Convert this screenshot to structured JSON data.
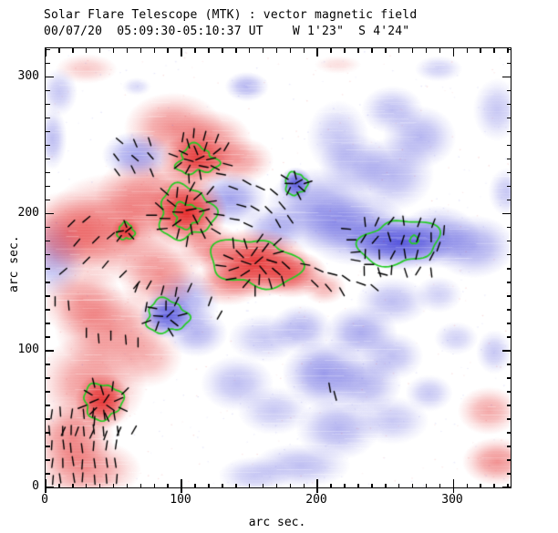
{
  "chart_data": {
    "type": "heatmap",
    "title": "Solar Flare Telescope (MTK) : vector magnetic field",
    "subtitle": "00/07/20  05:09:30-05:10:37 UT    W 1'23\"  S 4'24\"",
    "xlabel": "arc sec.",
    "ylabel": "arc sec.",
    "xlim": [
      0,
      342
    ],
    "ylim": [
      0,
      321
    ],
    "x_ticks": [
      0,
      100,
      200,
      300
    ],
    "y_ticks": [
      0,
      100,
      200,
      300
    ],
    "minor_tick_step": 10,
    "colors": {
      "positive": "#e32020",
      "negative": "#4343d9",
      "contour": "#22cc22",
      "vector": "#000000",
      "frame": "#000000",
      "background": "#ffffff"
    },
    "blob_format": [
      "x_arcsec",
      "y_arcsec",
      "rx_arcsec",
      "ry_arcsec",
      "intensity",
      "polarity p=positive(red) n=negative(blue)"
    ],
    "field_blobs": [
      [
        94,
        263,
        27,
        19,
        0.5,
        "p"
      ],
      [
        121,
        253,
        23,
        17,
        0.5,
        "p"
      ],
      [
        111,
        239,
        20,
        15,
        0.85,
        "p"
      ],
      [
        141,
        239,
        20,
        13,
        0.45,
        "p"
      ],
      [
        104,
        201,
        22,
        20,
        0.95,
        "p"
      ],
      [
        77,
        213,
        30,
        23,
        0.5,
        "p"
      ],
      [
        47,
        189,
        37,
        30,
        0.55,
        "p"
      ],
      [
        17,
        186,
        27,
        23,
        0.5,
        "p"
      ],
      [
        59,
        187,
        8,
        8,
        0.8,
        "p"
      ],
      [
        121,
        176,
        17,
        13,
        0.5,
        "p"
      ],
      [
        154,
        164,
        30,
        19,
        0.92,
        "p"
      ],
      [
        181,
        156,
        20,
        13,
        0.7,
        "p"
      ],
      [
        134,
        149,
        20,
        12,
        0.45,
        "p"
      ],
      [
        47,
        116,
        30,
        23,
        0.5,
        "p"
      ],
      [
        27,
        136,
        23,
        20,
        0.45,
        "p"
      ],
      [
        34,
        76,
        30,
        27,
        0.5,
        "p"
      ],
      [
        42,
        63,
        15,
        15,
        0.85,
        "p"
      ],
      [
        20,
        36,
        23,
        20,
        0.55,
        "p"
      ],
      [
        30,
        13,
        30,
        17,
        0.5,
        "p"
      ],
      [
        74,
        96,
        20,
        17,
        0.35,
        "p"
      ],
      [
        84,
        156,
        23,
        20,
        0.5,
        "p"
      ],
      [
        205,
        146,
        12,
        9,
        0.35,
        "p"
      ],
      [
        326,
        56,
        17,
        13,
        0.4,
        "p"
      ],
      [
        332,
        19,
        19,
        13,
        0.5,
        "p"
      ],
      [
        30,
        306,
        17,
        8,
        0.25,
        "p"
      ],
      [
        215,
        309,
        13,
        5,
        0.15,
        "p"
      ],
      [
        201,
        203,
        30,
        23,
        0.5,
        "n"
      ],
      [
        184,
        222,
        9,
        9,
        0.85,
        "n"
      ],
      [
        228,
        189,
        30,
        20,
        0.55,
        "n"
      ],
      [
        260,
        179,
        30,
        15,
        0.9,
        "n"
      ],
      [
        289,
        183,
        23,
        17,
        0.5,
        "n"
      ],
      [
        315,
        176,
        23,
        17,
        0.45,
        "n"
      ],
      [
        255,
        229,
        23,
        20,
        0.4,
        "n"
      ],
      [
        275,
        256,
        20,
        17,
        0.4,
        "n"
      ],
      [
        255,
        276,
        17,
        13,
        0.35,
        "n"
      ],
      [
        228,
        236,
        20,
        17,
        0.35,
        "n"
      ],
      [
        215,
        256,
        17,
        20,
        0.3,
        "n"
      ],
      [
        332,
        276,
        13,
        17,
        0.3,
        "n"
      ],
      [
        339,
        216,
        10,
        13,
        0.3,
        "n"
      ],
      [
        148,
        293,
        12,
        8,
        0.4,
        "n"
      ],
      [
        7,
        169,
        17,
        23,
        0.4,
        "n"
      ],
      [
        5,
        255,
        8,
        17,
        0.35,
        "n"
      ],
      [
        67,
        243,
        19,
        13,
        0.5,
        "n"
      ],
      [
        136,
        211,
        20,
        15,
        0.5,
        "n"
      ],
      [
        168,
        189,
        17,
        13,
        0.4,
        "n"
      ],
      [
        89,
        125,
        15,
        12,
        0.8,
        "n"
      ],
      [
        101,
        136,
        20,
        17,
        0.45,
        "n"
      ],
      [
        111,
        113,
        17,
        13,
        0.4,
        "n"
      ],
      [
        161,
        109,
        20,
        13,
        0.3,
        "n"
      ],
      [
        141,
        76,
        20,
        15,
        0.35,
        "n"
      ],
      [
        168,
        56,
        20,
        13,
        0.3,
        "n"
      ],
      [
        205,
        83,
        23,
        19,
        0.55,
        "n"
      ],
      [
        188,
        116,
        17,
        13,
        0.4,
        "n"
      ],
      [
        232,
        113,
        20,
        15,
        0.45,
        "n"
      ],
      [
        235,
        76,
        20,
        17,
        0.4,
        "n"
      ],
      [
        255,
        96,
        17,
        13,
        0.35,
        "n"
      ],
      [
        215,
        43,
        23,
        17,
        0.4,
        "n"
      ],
      [
        255,
        49,
        20,
        13,
        0.3,
        "n"
      ],
      [
        282,
        69,
        13,
        10,
        0.3,
        "n"
      ],
      [
        302,
        109,
        12,
        9,
        0.25,
        "n"
      ],
      [
        188,
        16,
        27,
        12,
        0.35,
        "n"
      ],
      [
        154,
        9,
        20,
        10,
        0.3,
        "n"
      ],
      [
        255,
        136,
        20,
        13,
        0.35,
        "n"
      ],
      [
        289,
        141,
        13,
        10,
        0.25,
        "n"
      ],
      [
        330,
        99,
        10,
        12,
        0.3,
        "n"
      ],
      [
        10,
        289,
        10,
        13,
        0.3,
        "n"
      ],
      [
        289,
        306,
        13,
        7,
        0.25,
        "n"
      ],
      [
        67,
        293,
        8,
        5,
        0.2,
        "n"
      ]
    ],
    "contour_format": [
      "x_arcsec",
      "y_arcsec",
      "rx_arcsec",
      "ry_arcsec",
      "wobble",
      "lobes",
      "phase"
    ],
    "contours": [
      [
        111,
        239,
        14,
        10,
        0.22,
        3,
        0.5
      ],
      [
        103,
        201,
        20,
        19,
        0.14,
        3,
        1.2
      ],
      [
        104,
        199,
        10,
        9,
        0.18,
        3,
        2.1
      ],
      [
        59,
        187,
        6,
        6,
        0.15,
        3,
        0.3
      ],
      [
        154,
        164,
        29,
        19,
        0.2,
        2,
        0.8
      ],
      [
        184,
        222,
        8,
        8,
        0.12,
        3,
        1.5
      ],
      [
        260,
        179,
        27,
        17,
        0.17,
        2,
        2.6
      ],
      [
        271,
        181,
        3,
        3,
        0.1,
        3,
        0.0
      ],
      [
        42,
        63,
        14,
        13,
        0.12,
        3,
        2.2
      ],
      [
        89,
        125,
        15,
        12,
        0.14,
        3,
        0.9
      ]
    ],
    "vector_groups": [
      {
        "mode": "radial",
        "x": 111,
        "y": 239,
        "n": 15,
        "rmax": 18,
        "twist": 10,
        "jitter": 25,
        "len": 10
      },
      {
        "mode": "grid",
        "x0": 53,
        "y0": 231,
        "cols": 3,
        "rows": 3,
        "dx": 12,
        "dy": 11,
        "angle": -55,
        "jitter": 18,
        "len": 9
      },
      {
        "mode": "radial",
        "x": 104,
        "y": 201,
        "n": 24,
        "rmax": 27,
        "twist": -12,
        "jitter": 22,
        "len": 11
      },
      {
        "mode": "list",
        "len": 10,
        "items": [
          [
            138,
            219,
            -20
          ],
          [
            148,
            223,
            -30
          ],
          [
            158,
            219,
            -25
          ],
          [
            168,
            216,
            -40
          ],
          [
            144,
            206,
            -15
          ],
          [
            154,
            204,
            -30
          ],
          [
            164,
            203,
            -45
          ],
          [
            174,
            206,
            -50
          ],
          [
            139,
            196,
            -10
          ],
          [
            149,
            192,
            -25
          ],
          [
            171,
            193,
            -60
          ],
          [
            180,
            196,
            -55
          ],
          [
            129,
            229,
            -10
          ],
          [
            134,
            236,
            -15
          ]
        ]
      },
      {
        "mode": "radial",
        "x": 184,
        "y": 222,
        "n": 8,
        "rmax": 11,
        "twist": 0,
        "jitter": 15,
        "len": 9
      },
      {
        "mode": "radial",
        "x": 154,
        "y": 164,
        "n": 24,
        "rmax": 26,
        "twist": -18,
        "jitter": 20,
        "len": 11
      },
      {
        "mode": "list",
        "len": 10,
        "items": [
          [
            191,
            163,
            -10
          ],
          [
            201,
            159,
            -25
          ],
          [
            211,
            156,
            -15
          ],
          [
            221,
            153,
            -35
          ],
          [
            232,
            149,
            -20
          ],
          [
            242,
            146,
            -40
          ],
          [
            248,
            156,
            -15
          ],
          [
            238,
            163,
            0
          ],
          [
            228,
            166,
            -10
          ],
          [
            208,
            146,
            -50
          ],
          [
            198,
            149,
            -45
          ],
          [
            218,
            143,
            -60
          ]
        ]
      },
      {
        "mode": "grid",
        "x0": 234,
        "y0": 158,
        "cols": 6,
        "rows": 4,
        "dx": 10,
        "dy": 12,
        "angle": 78,
        "jitter": 30,
        "len": 10
      },
      {
        "mode": "list",
        "len": 10,
        "items": [
          [
            225,
            181,
            0
          ],
          [
            228,
            172,
            5
          ],
          [
            221,
            189,
            -5
          ],
          [
            289,
            176,
            70
          ],
          [
            293,
            188,
            85
          ]
        ]
      },
      {
        "mode": "list",
        "len": 10,
        "items": [
          [
            19,
            193,
            45
          ],
          [
            30,
            196,
            40
          ],
          [
            23,
            179,
            50
          ],
          [
            37,
            181,
            45
          ],
          [
            48,
            184,
            40
          ],
          [
            30,
            166,
            45
          ],
          [
            44,
            163,
            50
          ],
          [
            13,
            158,
            40
          ],
          [
            57,
            156,
            45
          ],
          [
            67,
            148,
            50
          ]
        ]
      },
      {
        "mode": "radial",
        "x": 59,
        "y": 187,
        "n": 5,
        "rmax": 8,
        "twist": 0,
        "jitter": 20,
        "len": 8
      },
      {
        "mode": "radial",
        "x": 89,
        "y": 125,
        "n": 10,
        "rmax": 16,
        "twist": 5,
        "jitter": 20,
        "len": 10
      },
      {
        "mode": "list",
        "len": 10,
        "items": [
          [
            67,
            146,
            70
          ],
          [
            76,
            148,
            60
          ],
          [
            86,
            144,
            75
          ],
          [
            96,
            143,
            80
          ],
          [
            106,
            146,
            65
          ],
          [
            74,
            132,
            80
          ],
          [
            121,
            136,
            70
          ],
          [
            128,
            126,
            60
          ]
        ]
      },
      {
        "mode": "radial",
        "x": 42,
        "y": 63,
        "n": 14,
        "rmax": 19,
        "twist": 8,
        "jitter": 20,
        "len": 10
      },
      {
        "mode": "grid",
        "x0": 4,
        "y0": 6,
        "cols": 7,
        "rows": 5,
        "dx": 8,
        "dy": 12,
        "angle": -90,
        "jitter": 10,
        "len": 10
      },
      {
        "mode": "list",
        "len": 10,
        "items": [
          [
            13,
            41,
            65
          ],
          [
            23,
            41,
            70
          ],
          [
            34,
            39,
            65
          ],
          [
            44,
            38,
            70
          ],
          [
            54,
            41,
            65
          ],
          [
            65,
            42,
            60
          ]
        ]
      },
      {
        "mode": "list",
        "len": 10,
        "items": [
          [
            209,
            73,
            -80
          ],
          [
            213,
            67,
            -75
          ],
          [
            30,
            113,
            -90
          ],
          [
            39,
            109,
            -85
          ],
          [
            48,
            111,
            -90
          ],
          [
            59,
            108,
            -85
          ],
          [
            68,
            106,
            -90
          ],
          [
            7,
            136,
            -90
          ],
          [
            17,
            133,
            -85
          ]
        ]
      },
      {
        "mode": "list",
        "len": 10,
        "items": [
          [
            101,
            256,
            80
          ],
          [
            109,
            259,
            85
          ],
          [
            117,
            257,
            75
          ],
          [
            126,
            255,
            70
          ],
          [
            133,
            249,
            60
          ]
        ]
      }
    ]
  }
}
